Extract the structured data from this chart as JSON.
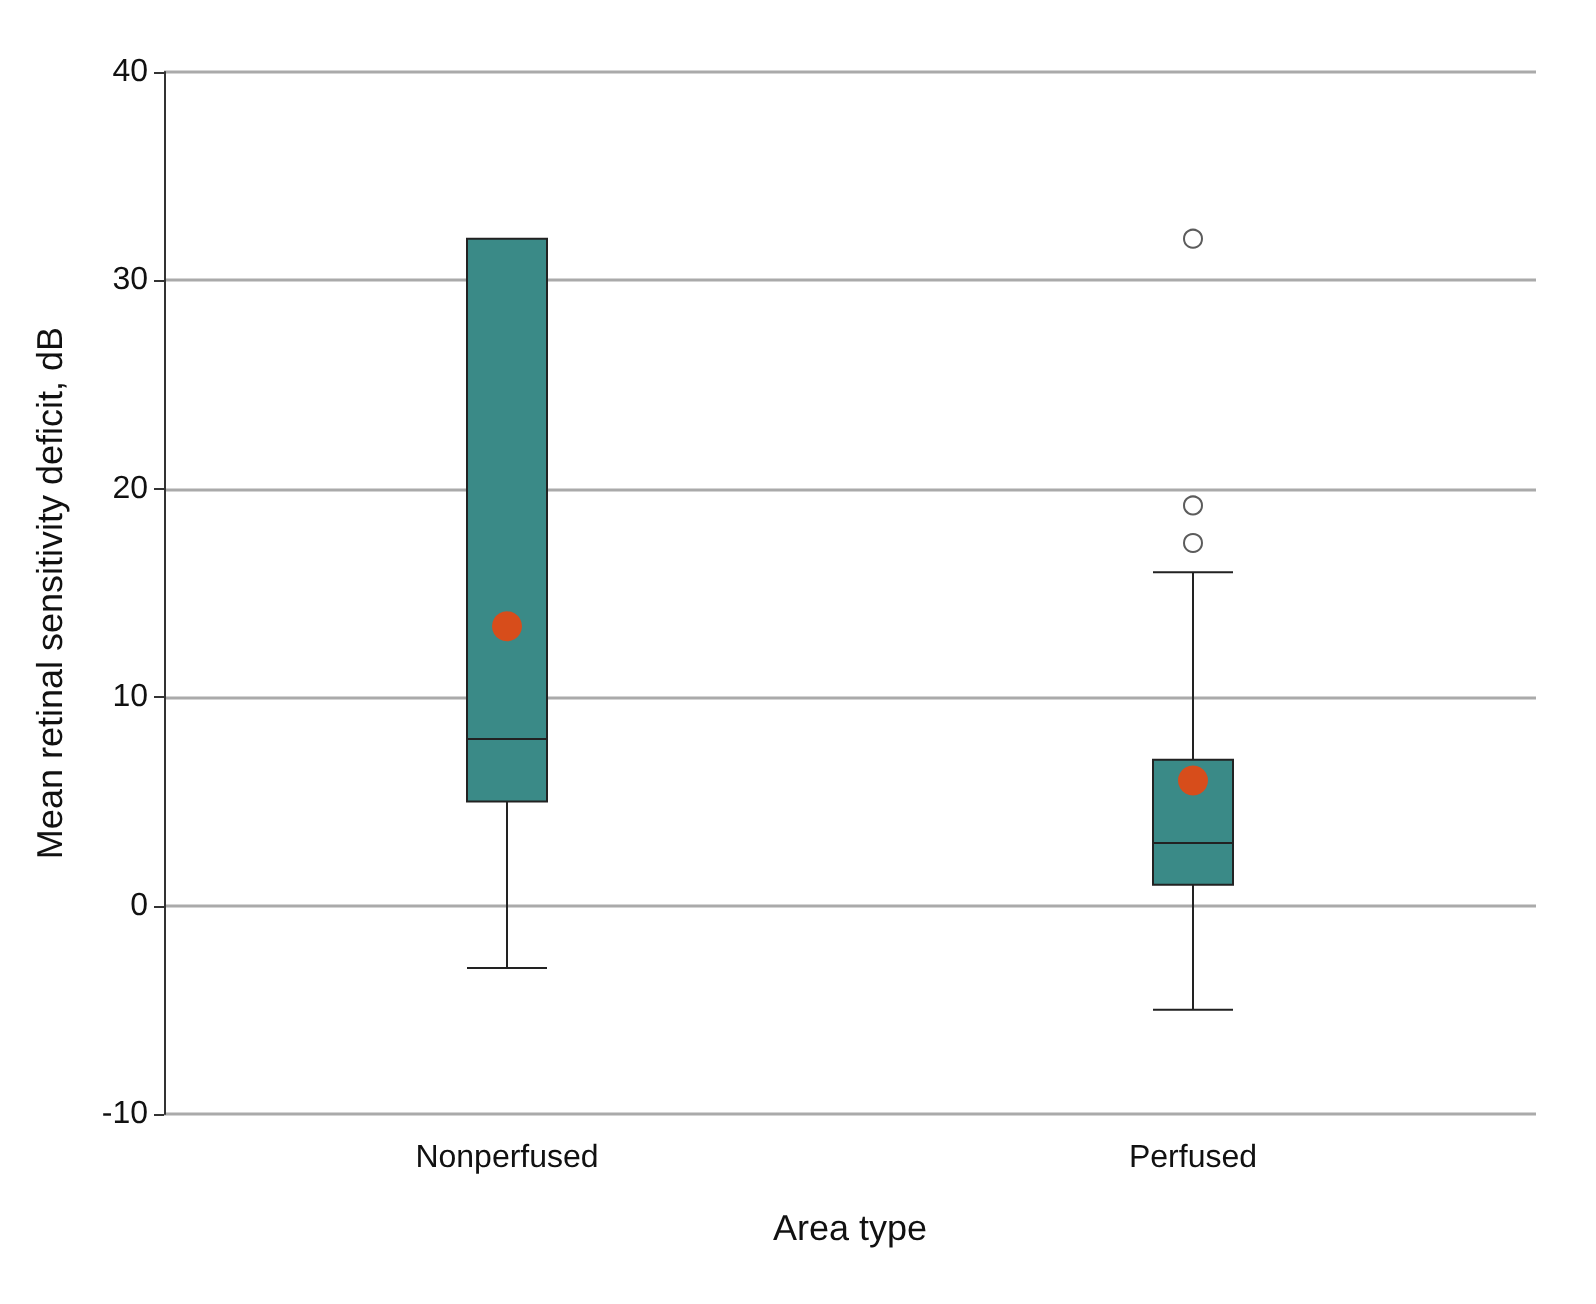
{
  "chart_data": {
    "type": "box",
    "xlabel": "Area type",
    "ylabel": "Mean retinal sensitivity deficit, dB",
    "categories": [
      "Nonperfused",
      "Perfused"
    ],
    "boxes": [
      {
        "low": -3,
        "q1": 5,
        "median": 8,
        "q3": 32,
        "high": 32
      },
      {
        "low": -5,
        "q1": 1,
        "median": 3,
        "q3": 7,
        "high": 16,
        "outliers": [
          17.4,
          19.2,
          32
        ]
      }
    ],
    "color": "#3a8a87",
    "series": [
      {
        "type": "scatter",
        "color": "#ff3d00",
        "x": [
          "Nonperfused",
          "Perfused"
        ],
        "values": [
          13.4,
          6
        ]
      }
    ],
    "ylim": [
      -10,
      40
    ],
    "yticks": [
      -10,
      0,
      10,
      20,
      30,
      40
    ],
    "grid": "y"
  }
}
